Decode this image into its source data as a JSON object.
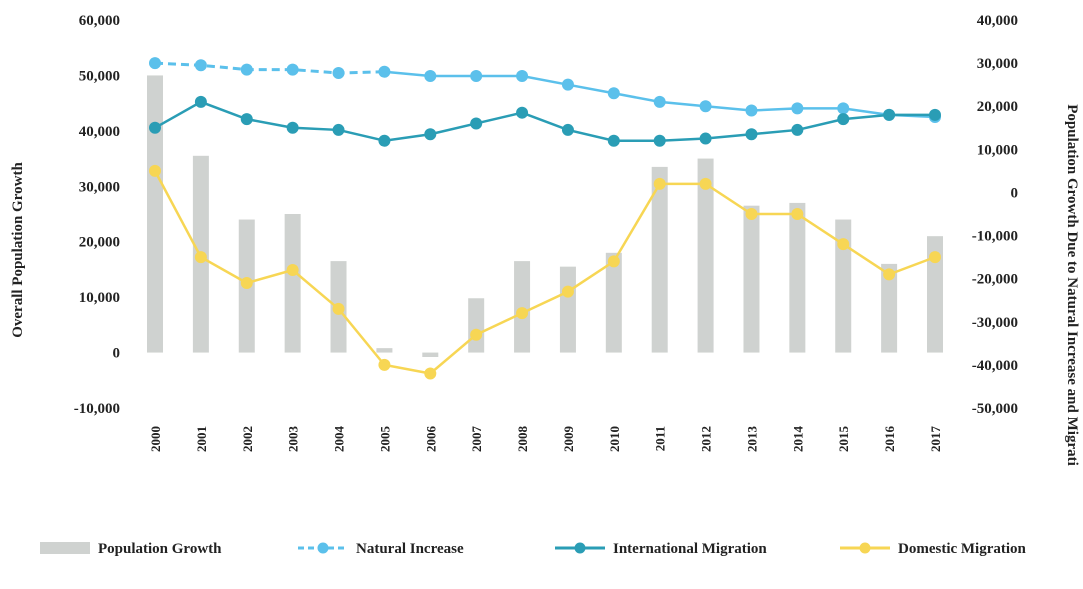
{
  "chart_data": {
    "type": "bar",
    "title": "",
    "categories": [
      "2000",
      "2001",
      "2002",
      "2003",
      "2004",
      "2005",
      "2006",
      "2007",
      "2008",
      "2009",
      "2010",
      "2011",
      "2012",
      "2013",
      "2014",
      "2015",
      "2016",
      "2017"
    ],
    "y_left": {
      "label": "Overall Population Growth",
      "ylim": [
        -10000,
        60000
      ],
      "ticks": [
        -10000,
        0,
        10000,
        20000,
        30000,
        40000,
        50000,
        60000
      ],
      "tick_labels": [
        "-10,000",
        "0",
        "10,000",
        "20,000",
        "30,000",
        "40,000",
        "50,000",
        "60,000"
      ]
    },
    "y_right": {
      "label": "Population Growth Due to Natural Increase and Migrati",
      "ylim": [
        -50000,
        40000
      ],
      "ticks": [
        -50000,
        -40000,
        -30000,
        -20000,
        -10000,
        0,
        10000,
        20000,
        30000,
        40000
      ],
      "tick_labels": [
        "-50,000",
        "-40,000",
        "-30,000",
        "-20,000",
        "-10,000",
        "0",
        "10,000",
        "20,000",
        "30,000",
        "40,000"
      ]
    },
    "series": [
      {
        "name": "Population Growth",
        "type": "bar",
        "axis": "left",
        "color": "#cfd2d0",
        "values": [
          50000,
          35500,
          24000,
          25000,
          16500,
          800,
          -800,
          9800,
          16500,
          15500,
          18000,
          33500,
          35000,
          26500,
          27000,
          24000,
          16000,
          21000
        ]
      },
      {
        "name": "Natural Increase",
        "type": "line",
        "axis": "right",
        "color": "#5bc0eb",
        "dashed_until_index": 5,
        "values": [
          30000,
          29500,
          28500,
          28500,
          27700,
          28000,
          27000,
          27000,
          27000,
          25000,
          23000,
          21000,
          20000,
          19000,
          19500,
          19500,
          18000,
          17500
        ]
      },
      {
        "name": "International Migration",
        "type": "line",
        "axis": "right",
        "color": "#2a9db5",
        "values": [
          15000,
          21000,
          17000,
          15000,
          14500,
          12000,
          13500,
          16000,
          18500,
          14500,
          12000,
          12000,
          12500,
          13500,
          14500,
          17000,
          18000,
          18000
        ]
      },
      {
        "name": "Domestic Migration",
        "type": "line",
        "axis": "right",
        "color": "#f7d654",
        "values": [
          5000,
          -15000,
          -21000,
          -18000,
          -27000,
          -40000,
          -42000,
          -33000,
          -28000,
          -23000,
          -16000,
          2000,
          2000,
          -5000,
          -5000,
          -12000,
          -19000,
          -15000
        ]
      }
    ],
    "legend": {
      "position": "bottom",
      "items": [
        "Population Growth",
        "Natural Increase",
        "International Migration",
        "Domestic Migration"
      ]
    },
    "grid": false
  }
}
